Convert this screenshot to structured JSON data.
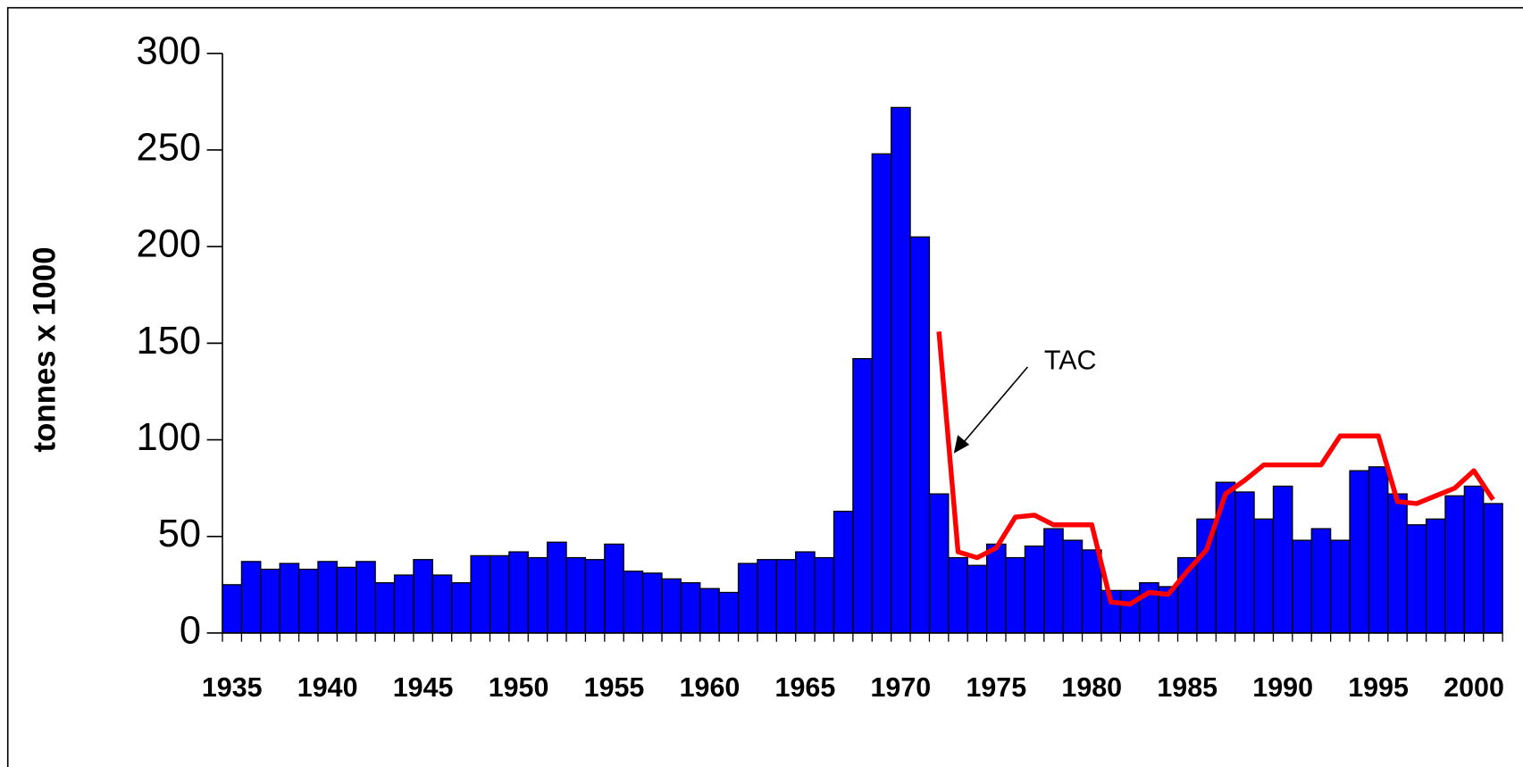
{
  "chart_data": {
    "type": "bar",
    "y_label": "tonnes x 1000",
    "categories": [
      "1935",
      null,
      null,
      null,
      null,
      "1940",
      null,
      null,
      null,
      null,
      "1945",
      null,
      null,
      null,
      null,
      "1950",
      null,
      null,
      null,
      null,
      "1955",
      null,
      null,
      null,
      null,
      "1960",
      null,
      null,
      null,
      null,
      "1965",
      null,
      null,
      null,
      null,
      "1970",
      null,
      null,
      null,
      null,
      "1975",
      null,
      null,
      null,
      null,
      "1980",
      null,
      null,
      null,
      null,
      "1985",
      null,
      null,
      null,
      null,
      "1990",
      null,
      null,
      null,
      null,
      "1995",
      null,
      null,
      null,
      null,
      "2000",
      null
    ],
    "series": [
      {
        "type": "bar",
        "color": "#0000ff",
        "values": [
          25,
          37,
          33,
          36,
          33,
          37,
          34,
          37,
          26,
          30,
          38,
          30,
          26,
          40,
          40,
          42,
          39,
          47,
          39,
          38,
          46,
          32,
          31,
          28,
          26,
          23,
          21,
          36,
          38,
          38,
          42,
          39,
          63,
          142,
          248,
          272,
          205,
          72,
          39,
          35,
          46,
          39,
          45,
          54,
          48,
          43,
          22,
          22,
          26,
          24,
          39,
          59,
          78,
          73,
          59,
          76,
          48,
          54,
          48,
          84,
          86,
          72,
          56,
          59,
          71,
          76,
          67
        ]
      },
      {
        "type": "line",
        "name": "TAC",
        "color": "#ff0000",
        "values": [
          null,
          null,
          null,
          null,
          null,
          null,
          null,
          null,
          null,
          null,
          null,
          null,
          null,
          null,
          null,
          null,
          null,
          null,
          null,
          null,
          null,
          null,
          null,
          null,
          null,
          null,
          null,
          null,
          null,
          null,
          null,
          null,
          null,
          null,
          null,
          null,
          null,
          156,
          42,
          39,
          44,
          60,
          61,
          56,
          56,
          56,
          16,
          15,
          21,
          20,
          32,
          43,
          72,
          79,
          87,
          87,
          87,
          87,
          102,
          102,
          102,
          68,
          67,
          71,
          75,
          84,
          69
        ]
      }
    ],
    "ylim": [
      0,
      300
    ],
    "yticks": [
      0,
      50,
      100,
      150,
      200,
      250,
      300
    ],
    "grid": false
  }
}
